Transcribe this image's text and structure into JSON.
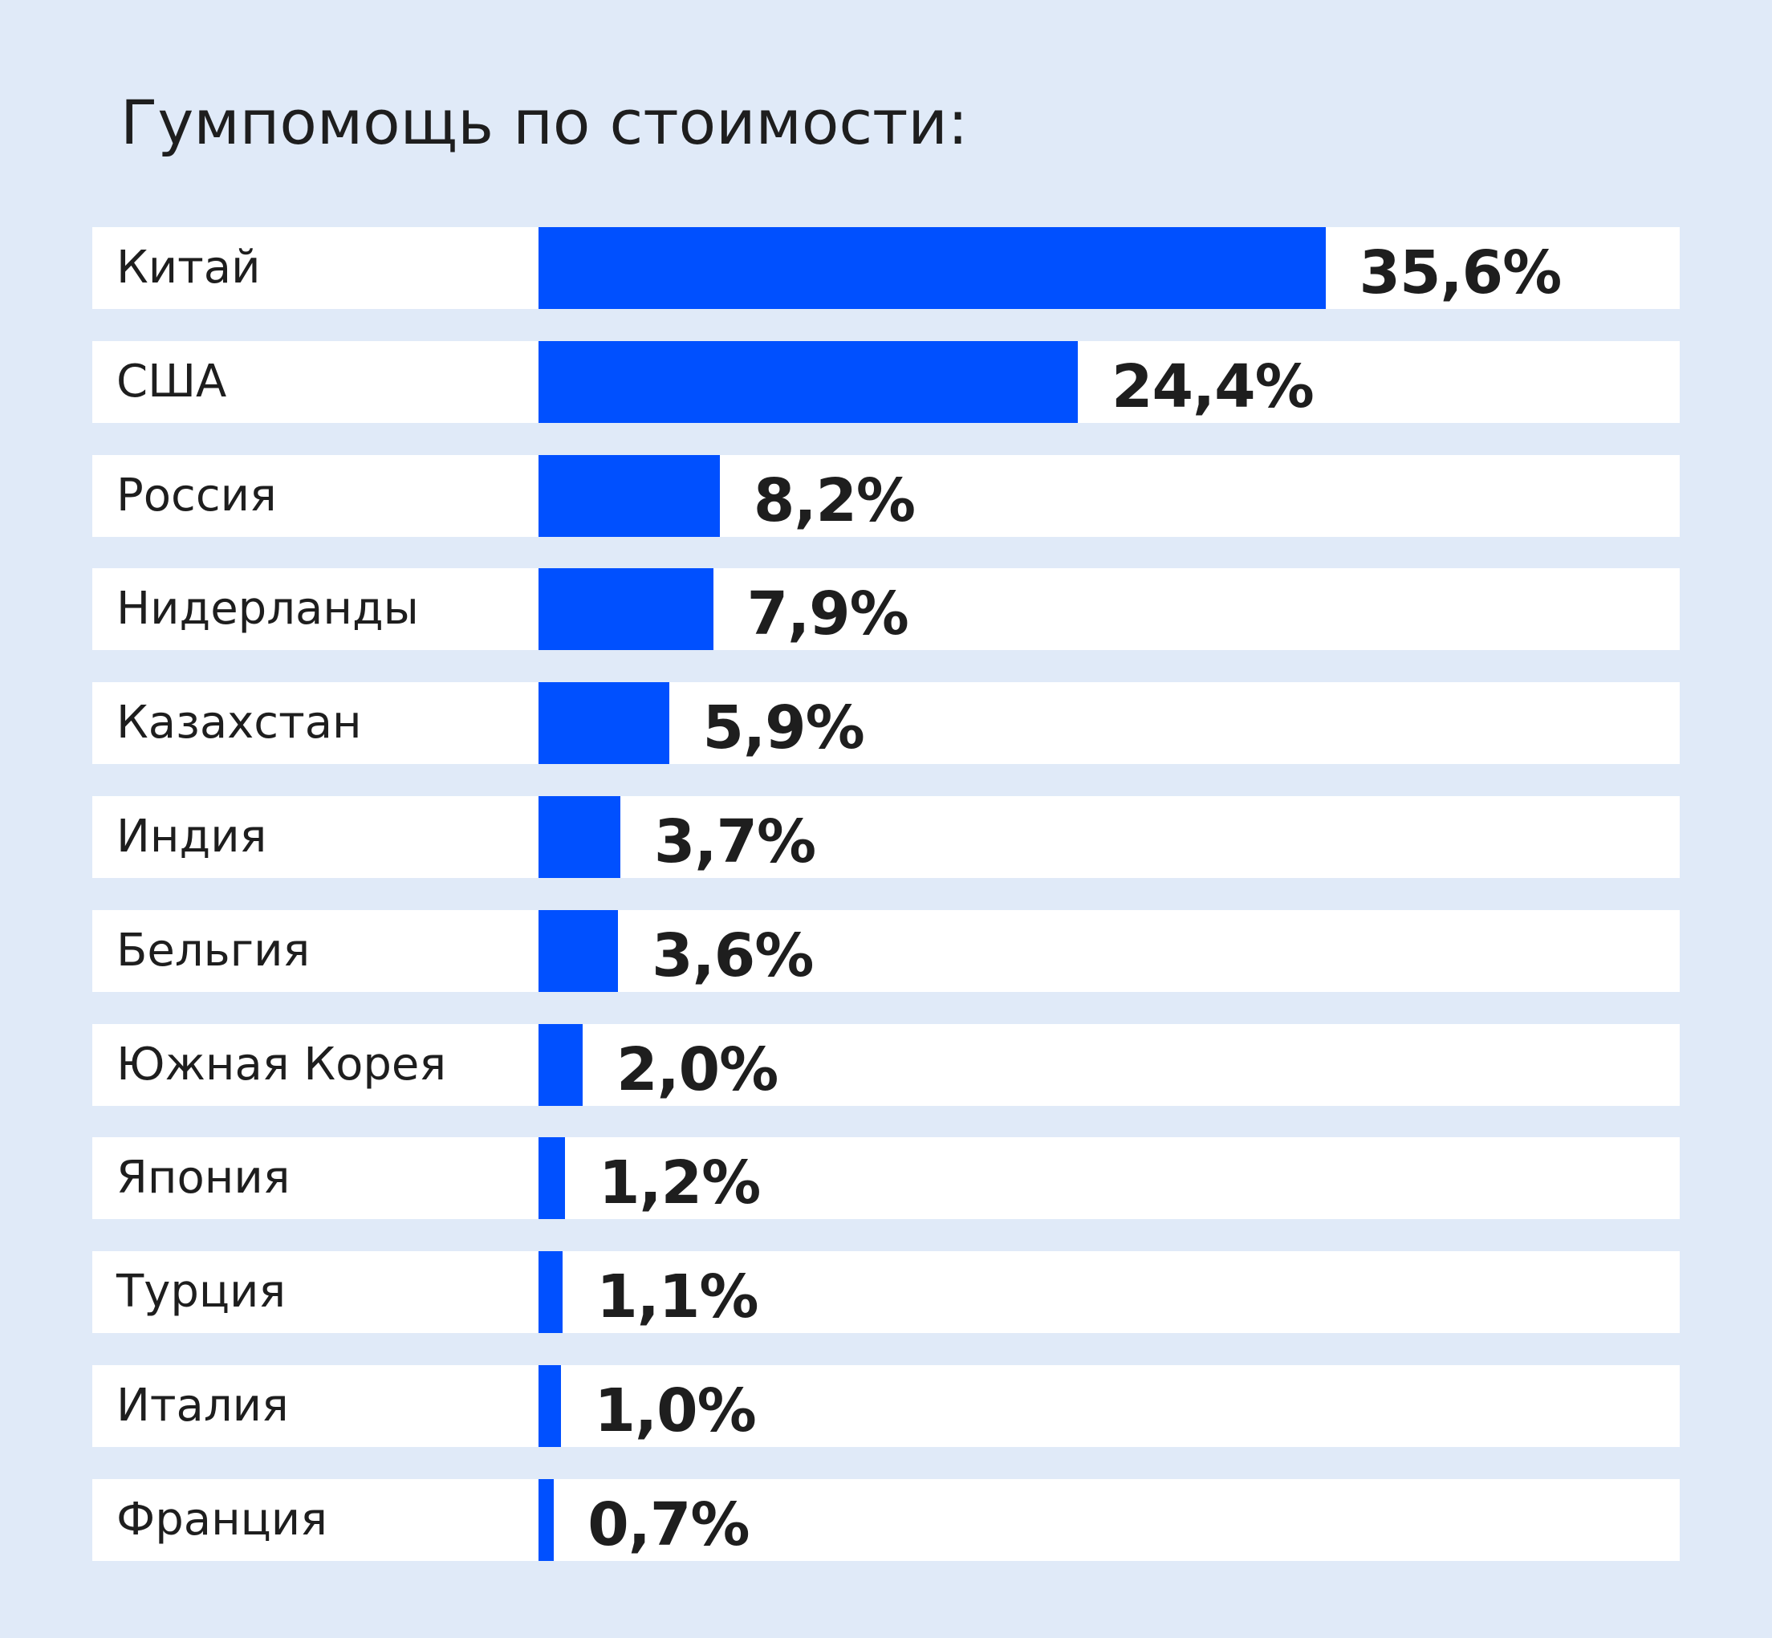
{
  "colors": {
    "background": "#e0eaf8",
    "row_background": "#ffffff",
    "bar": "#0050ff",
    "text": "#1e1e1e"
  },
  "chart_data": {
    "type": "bar",
    "orientation": "horizontal",
    "title": "Гумпомощь по стоимости:",
    "xlabel": "",
    "ylabel": "",
    "grid": false,
    "legend": "none",
    "xlim": [
      0,
      50
    ],
    "categories": [
      "Китай",
      "США",
      "Россия",
      "Нидерланды",
      "Казахстан",
      "Индия",
      "Бельгия",
      "Южная Корея",
      "Япония",
      "Турция",
      "Италия",
      "Франция"
    ],
    "values": [
      35.6,
      24.4,
      8.2,
      7.9,
      5.9,
      3.7,
      3.6,
      2.0,
      1.2,
      1.1,
      1.0,
      0.7
    ],
    "value_labels": [
      "35,6%",
      "24,4%",
      "8,2%",
      "7,9%",
      "5,9%",
      "3,7%",
      "3,6%",
      "2,0%",
      "1,2%",
      "1,1%",
      "1,0%",
      "0,7%"
    ]
  }
}
